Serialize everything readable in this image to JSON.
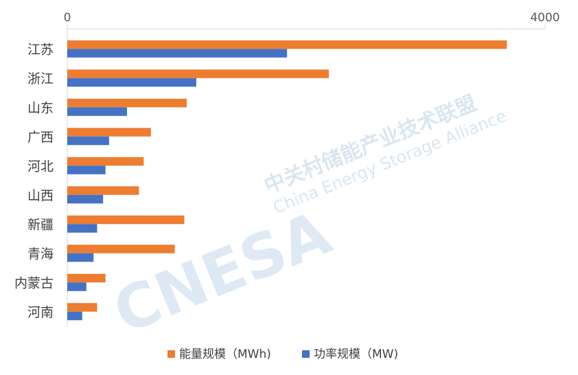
{
  "chart_data": {
    "type": "bar",
    "orientation": "horizontal",
    "categories": [
      "江苏",
      "浙江",
      "山东",
      "广西",
      "河北",
      "山西",
      "新疆",
      "青海",
      "内蒙古",
      "河南"
    ],
    "series": [
      {
        "name": "能量规模（MWh)",
        "color": "#ED7D31",
        "values": [
          3680,
          2190,
          1000,
          700,
          640,
          600,
          980,
          900,
          320,
          250
        ]
      },
      {
        "name": "功率规模（MW)",
        "color": "#4472C4",
        "values": [
          1840,
          1080,
          500,
          350,
          320,
          300,
          250,
          220,
          160,
          125
        ]
      }
    ],
    "xlim": [
      0,
      4000
    ],
    "x_ticks": [
      "0",
      "4000"
    ],
    "x_axis_position": "top",
    "grid": false,
    "legend_position": "bottom"
  },
  "watermark": {
    "logo_text": "CNESA",
    "cn_text": "中关村储能产业技术联盟",
    "en_text": "China Energy Storage Alliance"
  }
}
